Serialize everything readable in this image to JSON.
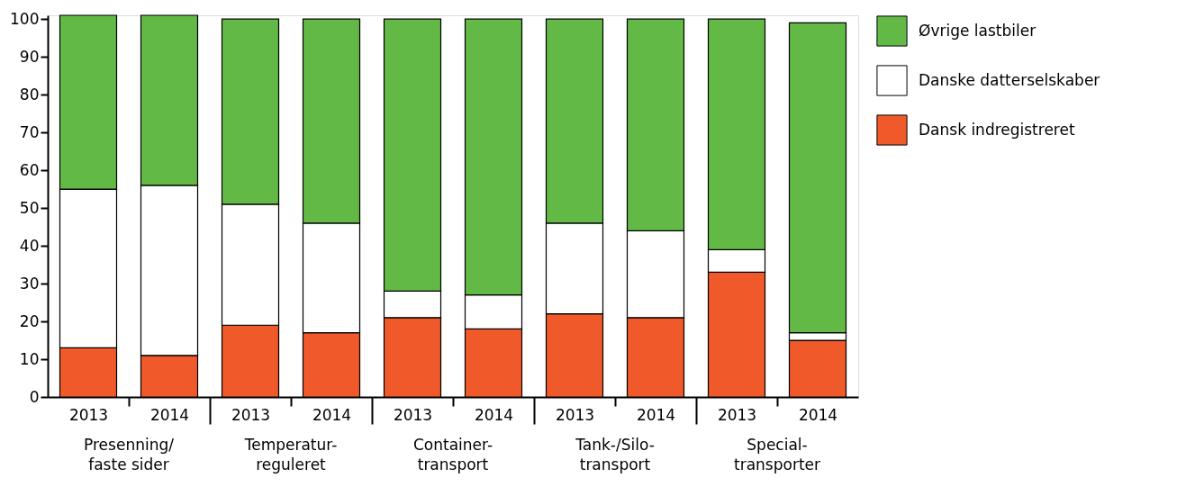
{
  "chart_data": {
    "type": "bar",
    "stacked": true,
    "categories": [
      "2013",
      "2014",
      "2013",
      "2014",
      "2013",
      "2014",
      "2013",
      "2014",
      "2013",
      "2014"
    ],
    "series": [
      {
        "name": "Dansk indregistreret",
        "color": "#f05a2b",
        "values": [
          13,
          11,
          19,
          17,
          21,
          18,
          22,
          21,
          33,
          15
        ]
      },
      {
        "name": "Danske datterselskaber",
        "color": "#ffffff",
        "values": [
          42,
          45,
          32,
          29,
          7,
          9,
          24,
          23,
          6,
          2
        ]
      },
      {
        "name": "Øvrige lastbiler",
        "color": "#63b946",
        "values": [
          46,
          45,
          49,
          54,
          72,
          73,
          54,
          56,
          61,
          82
        ]
      }
    ],
    "annotations": [
      "Presenning/\nfaste sider",
      "Temperatur-\nreguleret",
      "Container-\ntransport",
      "Tank-/Silo-\ntransport",
      "Special-\ntransporter"
    ],
    "ylim": [
      0,
      101
    ],
    "yticks": [
      0,
      10,
      20,
      30,
      40,
      50,
      60,
      70,
      80,
      90,
      100
    ],
    "grid": false,
    "legend": "top right"
  }
}
